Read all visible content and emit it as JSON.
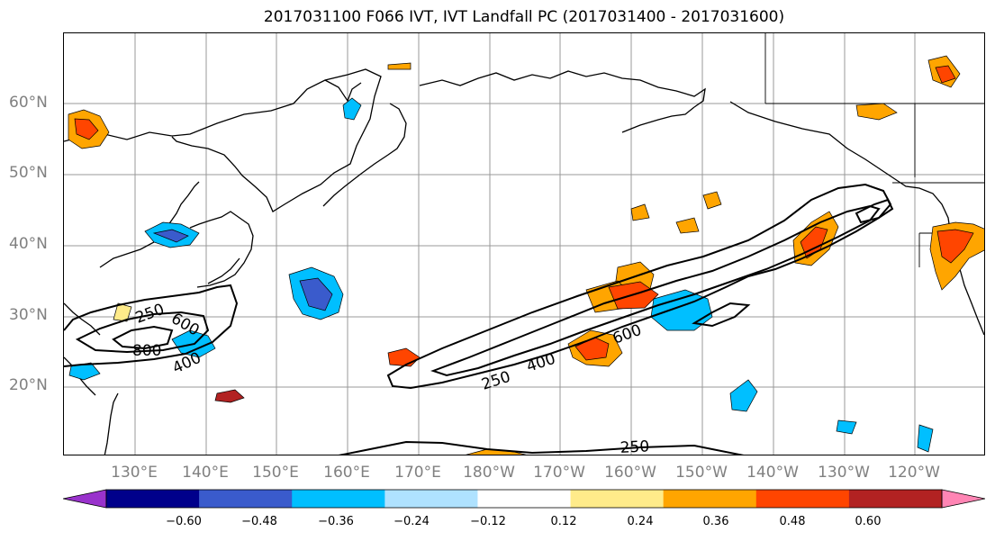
{
  "title": "2017031100 F066 IVT, IVT Landfall PC (2017031400 - 2017031600)",
  "latitude_labels": [
    "60°N",
    "50°N",
    "40°N",
    "30°N",
    "20°N"
  ],
  "longitude_labels": [
    "130°E",
    "140°E",
    "150°E",
    "160°E",
    "170°E",
    "180°W",
    "170°W",
    "160°W",
    "150°W",
    "140°W",
    "130°W",
    "120°W"
  ],
  "colorbar": {
    "colors": [
      "#9932cc",
      "#00008b",
      "#3a5bcc",
      "#00bfff",
      "#afe2ff",
      "#ffffff",
      "#ffeb8a",
      "#ffa500",
      "#ff4500",
      "#b22222",
      "#ff85b4"
    ],
    "tick_labels": [
      "−0.60",
      "−0.48",
      "−0.36",
      "−0.24",
      "−0.12",
      "0.12",
      "0.24",
      "0.36",
      "0.48",
      "0.60"
    ]
  },
  "contour_labels": [
    "250",
    "600",
    "800",
    "400",
    "400",
    "600",
    "250",
    "250"
  ],
  "colors": {
    "coastline": "#000000",
    "grid": "#888888",
    "axis_label": "#808080"
  }
}
